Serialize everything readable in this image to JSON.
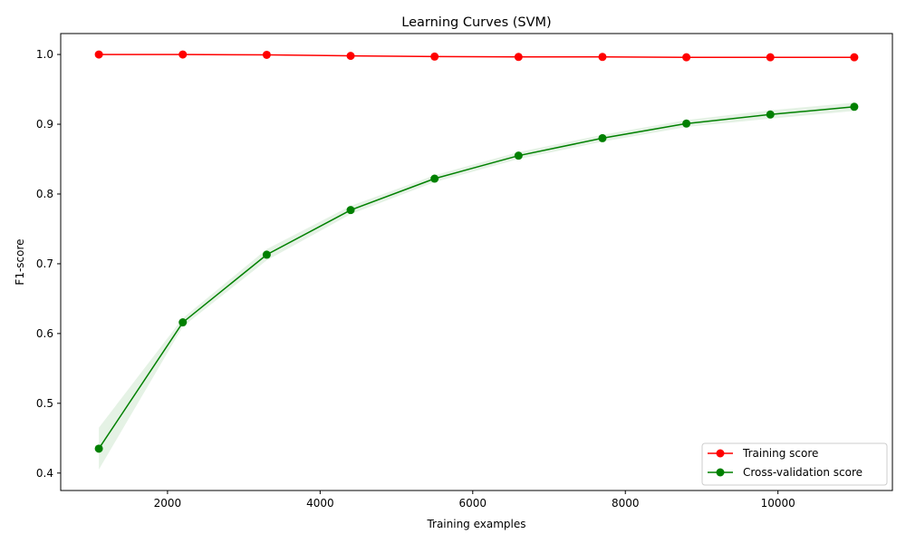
{
  "chart_data": {
    "type": "line",
    "title": "Learning Curves (SVM)",
    "xlabel": "Training examples",
    "ylabel": "F1-score",
    "xlim": [
      600,
      11500
    ],
    "ylim": [
      0.375,
      1.03
    ],
    "xticks": [
      2000,
      4000,
      6000,
      8000,
      10000
    ],
    "xtick_labels": [
      "2000",
      "4000",
      "6000",
      "8000",
      "10000"
    ],
    "yticks": [
      0.4,
      0.5,
      0.6,
      0.7,
      0.8,
      0.9,
      1.0
    ],
    "ytick_labels": [
      "0.4",
      "0.5",
      "0.6",
      "0.7",
      "0.8",
      "0.9",
      "1.0"
    ],
    "grid": false,
    "legend_position": "lower-right",
    "x": [
      1100,
      2200,
      3300,
      4400,
      5500,
      6600,
      7700,
      8800,
      9900,
      11000
    ],
    "series": [
      {
        "name": "Training score",
        "color": "#ff0000",
        "fill_color": "#ff0000",
        "values": [
          1.0,
          1.0,
          0.9995,
          0.998,
          0.997,
          0.9965,
          0.9965,
          0.996,
          0.996,
          0.996
        ],
        "std": [
          0.0003,
          0.0003,
          0.0004,
          0.0005,
          0.0005,
          0.0005,
          0.0005,
          0.0005,
          0.0005,
          0.0005
        ]
      },
      {
        "name": "Cross-validation score",
        "color": "#008000",
        "fill_color": "#008000",
        "values": [
          0.435,
          0.616,
          0.713,
          0.777,
          0.822,
          0.855,
          0.88,
          0.901,
          0.914,
          0.925
        ],
        "std": [
          0.03,
          0.006,
          0.008,
          0.006,
          0.005,
          0.005,
          0.005,
          0.005,
          0.006,
          0.006
        ]
      }
    ]
  }
}
